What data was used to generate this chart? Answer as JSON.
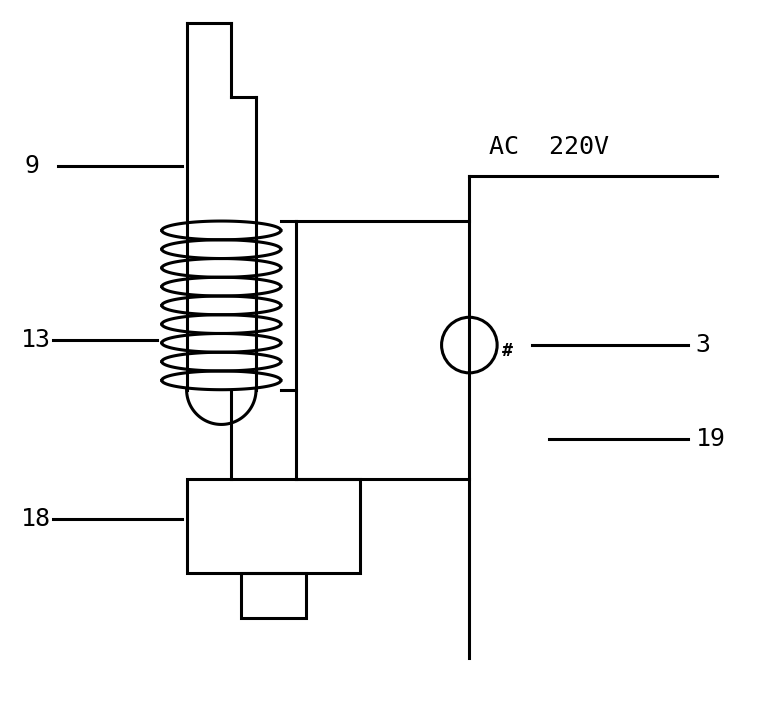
{
  "bg_color": "#ffffff",
  "line_color": "#000000",
  "lw": 2.2,
  "fig_width": 7.76,
  "fig_height": 7.07,
  "label_fontsize": 18,
  "coil_turns": 9
}
